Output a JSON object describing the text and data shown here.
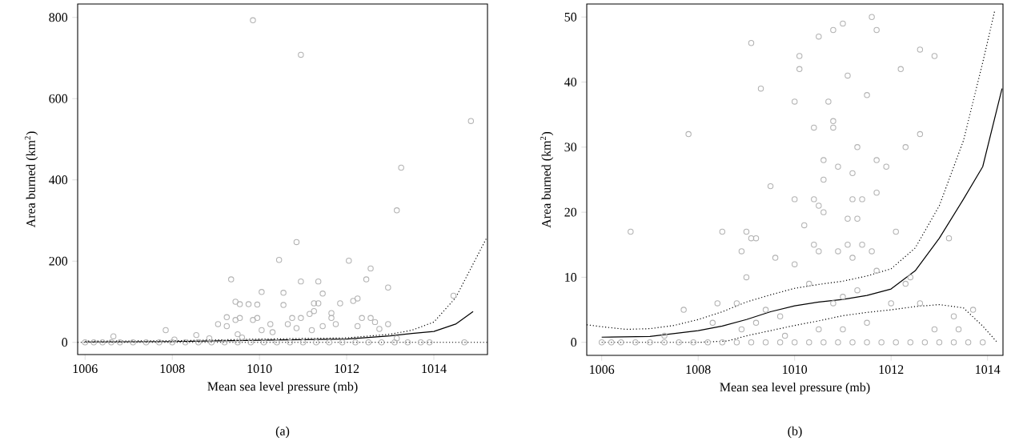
{
  "chart_data": [
    {
      "type": "scatter",
      "xlabel": "Mean sea level pressure (mb)",
      "ylabel": "Area burned (km$^{2}$)",
      "annotations": [
        "(a)"
      ],
      "xlim": [
        1005.83,
        1015.23
      ],
      "ylim": [
        -30,
        833
      ],
      "xticks": [
        1006,
        1008,
        1010,
        1012,
        1014
      ],
      "yticks": [
        0,
        200,
        400,
        600,
        800
      ],
      "grid": false,
      "series": [
        {
          "marker": "circle",
          "color": "#b3b3b3",
          "x": [
            1009.85,
            1010.95,
            1014.85,
            1013.25,
            1013.15,
            1010.85,
            1010.45,
            1012.05,
            1012.55,
            1009.35,
            1010.95,
            1011.35,
            1012.45,
            1010.05,
            1010.55,
            1011.45,
            1012.95,
            1009.45,
            1009.55,
            1009.75,
            1009.95,
            1010.55,
            1011.25,
            1011.35,
            1011.85,
            1012.15,
            1012.25,
            1014.45,
            1009.25,
            1009.45,
            1009.55,
            1009.85,
            1009.95,
            1010.75,
            1010.95,
            1011.15,
            1011.25,
            1011.65,
            1011.65,
            1012.35,
            1012.55,
            1012.65,
            1012.95,
            1009.05,
            1009.25,
            1010.05,
            1010.25,
            1010.65,
            1010.85,
            1011.45,
            1011.75,
            1012.25,
            1012.75,
            1007.85,
            1006.65,
            1008.55,
            1009.5,
            1010.3,
            1011.2,
            1013.15,
            1008.05,
            1008.85,
            1009.6,
            1006.0,
            1006.2,
            1006.4,
            1006.6,
            1006.8,
            1007.1,
            1007.4,
            1007.7,
            1008.0,
            1008.3,
            1008.6,
            1008.9,
            1009.2,
            1009.5,
            1009.8,
            1010.1,
            1010.4,
            1010.7,
            1011.0,
            1011.3,
            1011.6,
            1011.9,
            1012.2,
            1012.5,
            1012.8,
            1013.1,
            1013.4,
            1013.7,
            1013.9,
            1014.7
          ],
          "values": [
            793,
            708,
            545,
            430,
            325,
            247,
            203,
            201,
            182,
            155,
            150,
            150,
            155,
            124,
            122,
            120,
            135,
            100,
            94,
            94,
            93,
            92,
            96,
            96,
            96,
            102,
            108,
            115,
            62,
            55,
            60,
            55,
            60,
            60,
            60,
            70,
            77,
            72,
            60,
            60,
            60,
            50,
            45,
            45,
            40,
            30,
            45,
            45,
            35,
            40,
            45,
            40,
            33,
            30,
            15,
            18,
            20,
            25,
            30,
            10,
            7,
            10,
            12,
            0,
            0,
            0,
            0,
            0,
            0,
            0,
            0,
            0,
            0,
            0,
            0,
            0,
            0,
            0,
            0,
            0,
            0,
            0,
            0,
            0,
            0,
            0,
            0,
            0,
            0,
            0,
            0,
            0,
            0
          ]
        },
        {
          "type": "line",
          "marker": "none",
          "line_style": "solid",
          "color": "#000000",
          "x": [
            1006,
            1008,
            1010,
            1012,
            1013,
            1013.5,
            1014,
            1014.5,
            1014.9
          ],
          "values": [
            1,
            2,
            5,
            8,
            16,
            22,
            27,
            45,
            76
          ]
        },
        {
          "type": "line",
          "marker": "none",
          "line_style": "dotted",
          "color": "#000000",
          "x": [
            1006,
            1008,
            1010,
            1012,
            1013,
            1013.5,
            1014,
            1014.5,
            1015.2
          ],
          "values": [
            3,
            4,
            8,
            11,
            20,
            30,
            50,
            110,
            255
          ]
        },
        {
          "type": "line",
          "marker": "none",
          "line_style": "dotted",
          "color": "#000000",
          "x": [
            1005.83,
            1015.23
          ],
          "values": [
            0,
            0
          ]
        }
      ]
    },
    {
      "type": "scatter",
      "xlabel": "Mean sea level pressure (mb)",
      "ylabel": "Area burned (km$^{2}$)",
      "annotations": [
        "(b)"
      ],
      "xlim": [
        1005.69,
        1014.32
      ],
      "ylim": [
        -2,
        52
      ],
      "xticks": [
        1006,
        1008,
        1010,
        1012,
        1014
      ],
      "yticks": [
        0,
        10,
        20,
        30,
        40,
        50
      ],
      "grid": false,
      "series": [
        {
          "marker": "circle",
          "color": "#b3b3b3",
          "x": [
            1009.1,
            1009.3,
            1007.8,
            1009.0,
            1006.6,
            1009.5,
            1010.0,
            1010.1,
            1010.1,
            1010.5,
            1010.8,
            1011.0,
            1011.6,
            1011.7,
            1010.4,
            1010.8,
            1010.8,
            1011.1,
            1011.3,
            1011.5,
            1012.2,
            1012.6,
            1012.9,
            1012.6,
            1012.3,
            1011.7,
            1011.9,
            1011.7,
            1010.7,
            1010.4,
            1010.0,
            1010.2,
            1010.5,
            1010.6,
            1010.6,
            1010.9,
            1011.2,
            1011.4,
            1011.2,
            1011.3,
            1011.1,
            1010.6,
            1009.6,
            1009.0,
            1008.5,
            1008.9,
            1009.1,
            1009.2,
            1010.0,
            1010.4,
            1010.5,
            1010.9,
            1011.1,
            1011.4,
            1011.2,
            1011.6,
            1012.1,
            1013.2,
            1008.8,
            1008.4,
            1008.3,
            1007.7,
            1009.4,
            1009.7,
            1010.3,
            1010.8,
            1011.3,
            1011.7,
            1012.3,
            1012.6,
            1013.7,
            1013.3,
            1012.9,
            1013.4,
            1011.5,
            1011.0,
            1010.5,
            1009.8,
            1009.2,
            1008.9,
            1007.3,
            1012.4,
            1012.0,
            1011.0,
            1006.0,
            1006.2,
            1006.4,
            1006.7,
            1007.0,
            1007.3,
            1007.6,
            1007.9,
            1008.2,
            1008.5,
            1008.8,
            1009.1,
            1009.4,
            1009.7,
            1010.0,
            1010.3,
            1010.6,
            1010.9,
            1011.2,
            1011.5,
            1011.8,
            1012.1,
            1012.4,
            1012.7,
            1013.0,
            1013.3,
            1013.6,
            1013.9
          ],
          "values": [
            46,
            39,
            32,
            17,
            17,
            24,
            37,
            42,
            44,
            47,
            48,
            49,
            50,
            48,
            33,
            34,
            33,
            41,
            30,
            38,
            42,
            45,
            44,
            32,
            30,
            28,
            27,
            23,
            37,
            22,
            22,
            18,
            21,
            25,
            28,
            27,
            26,
            22,
            22,
            19,
            19,
            20,
            13,
            10,
            17,
            14,
            16,
            16,
            12,
            15,
            14,
            14,
            15,
            15,
            13,
            14,
            17,
            16,
            6,
            6,
            3,
            5,
            5,
            4,
            9,
            6,
            8,
            11,
            9,
            6,
            5,
            4,
            2,
            2,
            3,
            2,
            2,
            1,
            3,
            2,
            1,
            10,
            6,
            7,
            0,
            0,
            0,
            0,
            0,
            0,
            0,
            0,
            0,
            0,
            0,
            0,
            0,
            0,
            0,
            0,
            0,
            0,
            0,
            0,
            0,
            0,
            0,
            0,
            0,
            0,
            0,
            0
          ]
        },
        {
          "type": "line",
          "marker": "none",
          "line_style": "solid",
          "color": "#000000",
          "x": [
            1006,
            1007,
            1008,
            1008.5,
            1009,
            1009.5,
            1010,
            1010.5,
            1011,
            1011.5,
            1012,
            1012.5,
            1013,
            1013.5,
            1013.9,
            1014.3
          ],
          "values": [
            0.8,
            0.9,
            1.8,
            2.5,
            3.5,
            4.7,
            5.6,
            6.2,
            6.6,
            7.2,
            8.2,
            11,
            16,
            22,
            27,
            39
          ]
        },
        {
          "type": "line",
          "marker": "none",
          "line_style": "dotted",
          "color": "#000000",
          "x": [
            1005.69,
            1006,
            1006.5,
            1007,
            1007.5,
            1008,
            1008.5,
            1009,
            1009.5,
            1010,
            1010.5,
            1011,
            1011.5,
            1012,
            1012.5,
            1013,
            1013.5,
            1013.9,
            1014.15
          ],
          "values": [
            2.7,
            2.4,
            2.0,
            2.1,
            2.6,
            3.5,
            4.7,
            6.2,
            7.3,
            8.3,
            8.9,
            9.4,
            10.2,
            11.3,
            14.5,
            21,
            31,
            43,
            51
          ]
        },
        {
          "type": "line",
          "marker": "none",
          "line_style": "dotted",
          "color": "#000000",
          "x": [
            1006,
            1007,
            1008,
            1008.6,
            1009,
            1009.5,
            1010,
            1010.5,
            1011,
            1011.5,
            1012,
            1012.5,
            1013,
            1013.5,
            1013.9,
            1014.2
          ],
          "values": [
            0,
            0,
            0,
            0.2,
            1,
            1.8,
            2.6,
            3.3,
            4.1,
            4.6,
            5.0,
            5.5,
            5.8,
            5.3,
            2.5,
            0
          ]
        }
      ]
    }
  ]
}
